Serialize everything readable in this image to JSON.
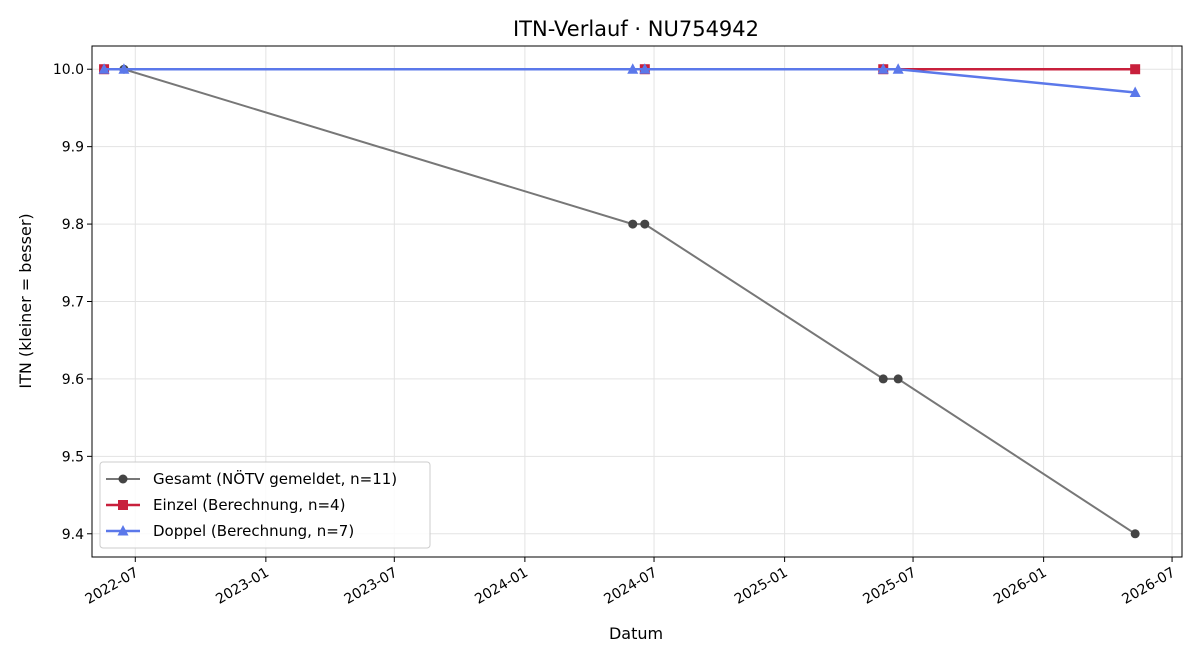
{
  "chart_data": {
    "type": "line",
    "title": "ITN-Verlauf · NU754942",
    "xlabel": "Datum",
    "ylabel": "ITN  (kleiner = besser)",
    "x_ticks": [
      "2022-07",
      "2023-01",
      "2023-07",
      "2024-01",
      "2024-07",
      "2025-01",
      "2025-07",
      "2026-01",
      "2026-07"
    ],
    "y_ticks": [
      9.4,
      9.5,
      9.6,
      9.7,
      9.8,
      9.9,
      10.0
    ],
    "xlim": [
      "2022-05-01",
      "2026-07-15"
    ],
    "ylim": [
      9.37,
      10.03
    ],
    "grid": true,
    "legend_position": "lower-left",
    "series": [
      {
        "name": "Gesamt (NÖTV gemeldet, n=11)",
        "color": "#777777",
        "marker": "circle",
        "points": [
          {
            "x": "2022-05-18",
            "y": 10.0
          },
          {
            "x": "2022-06-15",
            "y": 10.0
          },
          {
            "x": "2024-06-01",
            "y": 9.8
          },
          {
            "x": "2024-06-18",
            "y": 9.8
          },
          {
            "x": "2025-05-20",
            "y": 9.6
          },
          {
            "x": "2025-06-10",
            "y": 9.6
          },
          {
            "x": "2026-05-10",
            "y": 9.4
          }
        ]
      },
      {
        "name": "Einzel (Berechnung, n=4)",
        "color": "#c8203c",
        "marker": "square",
        "points": [
          {
            "x": "2022-05-18",
            "y": 10.0
          },
          {
            "x": "2024-06-18",
            "y": 10.0
          },
          {
            "x": "2025-05-20",
            "y": 10.0
          },
          {
            "x": "2026-05-10",
            "y": 10.0
          }
        ]
      },
      {
        "name": "Doppel (Berechnung, n=7)",
        "color": "#5b78ea",
        "marker": "triangle",
        "points": [
          {
            "x": "2022-05-18",
            "y": 10.0
          },
          {
            "x": "2022-06-15",
            "y": 10.0
          },
          {
            "x": "2024-06-01",
            "y": 10.0
          },
          {
            "x": "2024-06-18",
            "y": 10.0
          },
          {
            "x": "2025-05-20",
            "y": 10.0
          },
          {
            "x": "2025-06-10",
            "y": 10.0
          },
          {
            "x": "2026-05-10",
            "y": 9.97
          }
        ]
      }
    ]
  }
}
